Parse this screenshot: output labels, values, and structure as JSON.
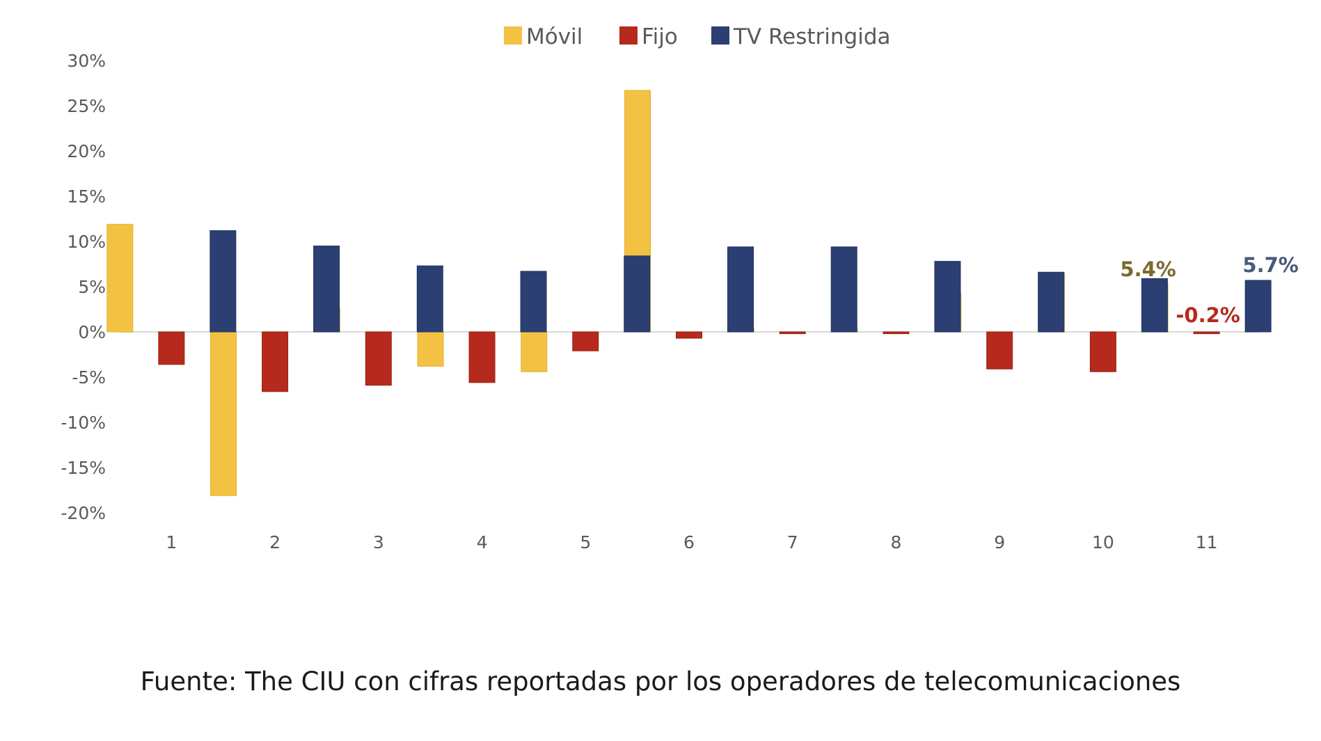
{
  "chart_data": {
    "type": "bar",
    "categories": [
      "1",
      "2",
      "3",
      "4",
      "5",
      "6",
      "7",
      "8",
      "9",
      "10",
      "11"
    ],
    "series": [
      {
        "name": "Móvil",
        "values": [
          11.9,
          -18.1,
          2.6,
          -3.8,
          -4.4,
          26.7,
          0.4,
          0.4,
          4.3,
          6.5,
          5.4
        ]
      },
      {
        "name": "Fijo",
        "values": [
          -3.6,
          -6.6,
          -5.9,
          -5.6,
          -2.1,
          -0.7,
          -0.2,
          -0.2,
          -4.1,
          -4.4,
          -0.2
        ]
      },
      {
        "name": "TV Restringida",
        "values": [
          11.2,
          9.5,
          7.3,
          6.7,
          8.4,
          9.4,
          9.4,
          7.8,
          6.6,
          5.9,
          5.7
        ]
      }
    ],
    "colors": [
      "#f4c242",
      "#b52a1c",
      "#2b3f73"
    ],
    "ylim": [
      -20,
      30
    ],
    "yticks": [
      "30%",
      "25%",
      "20%",
      "15%",
      "10%",
      "5%",
      "0%",
      "-5%",
      "-10%",
      "-15%",
      "-20%"
    ],
    "ytick_values": [
      30,
      25,
      20,
      15,
      10,
      5,
      0,
      -5,
      -10,
      -15,
      -20
    ],
    "legend_position": "top",
    "data_labels": [
      {
        "series": 0,
        "category": 10,
        "text": "5.4%",
        "color": "#7a6a2e"
      },
      {
        "series": 1,
        "category": 10,
        "text": "-0.2%",
        "color": "#b52a1c"
      },
      {
        "series": 2,
        "category": 10,
        "text": "5.7%",
        "color": "#4a5a7a"
      }
    ],
    "grid": false
  },
  "source_note": "Fuente: The CIU con cifras reportadas por los operadores de telecomunicaciones"
}
